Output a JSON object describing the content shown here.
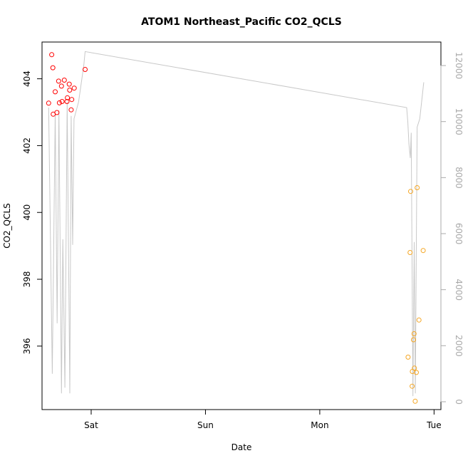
{
  "chart_data": {
    "type": "scatter",
    "title": "ATOM1 Northeast_Pacific CO2_QCLS",
    "xlabel": "Date",
    "ylabel": "CO2_QCLS",
    "x_ticks": [
      {
        "label": "Sat",
        "day": 1.0
      },
      {
        "label": "Sun",
        "day": 2.0
      },
      {
        "label": "Mon",
        "day": 3.0
      },
      {
        "label": "Tue",
        "day": 4.0
      }
    ],
    "xlim": [
      0.57,
      4.06
    ],
    "ylim": [
      394.1,
      405.1
    ],
    "y_ticks": [
      396,
      398,
      400,
      402,
      404
    ],
    "y2lim": [
      -280,
      12840
    ],
    "y2_ticks": [
      0,
      2000,
      4000,
      6000,
      8000,
      10000,
      12000
    ],
    "series": [
      {
        "color": "#ff0000",
        "points": [
          {
            "x": 0.628,
            "y": 403.27
          },
          {
            "x": 0.655,
            "y": 404.72
          },
          {
            "x": 0.665,
            "y": 404.33
          },
          {
            "x": 0.668,
            "y": 402.94
          },
          {
            "x": 0.685,
            "y": 403.61
          },
          {
            "x": 0.7,
            "y": 402.99
          },
          {
            "x": 0.715,
            "y": 403.93
          },
          {
            "x": 0.722,
            "y": 403.28
          },
          {
            "x": 0.74,
            "y": 403.78
          },
          {
            "x": 0.745,
            "y": 403.32
          },
          {
            "x": 0.765,
            "y": 403.96
          },
          {
            "x": 0.788,
            "y": 403.32
          },
          {
            "x": 0.792,
            "y": 403.43
          },
          {
            "x": 0.808,
            "y": 403.84
          },
          {
            "x": 0.812,
            "y": 403.66
          },
          {
            "x": 0.825,
            "y": 403.07
          },
          {
            "x": 0.83,
            "y": 403.38
          },
          {
            "x": 0.852,
            "y": 403.72
          },
          {
            "x": 0.947,
            "y": 404.28
          }
        ]
      },
      {
        "color": "#f5a623",
        "points": [
          {
            "x": 3.773,
            "y": 395.67
          },
          {
            "x": 3.79,
            "y": 398.8
          },
          {
            "x": 3.795,
            "y": 400.63
          },
          {
            "x": 3.808,
            "y": 394.8
          },
          {
            "x": 3.81,
            "y": 395.24
          },
          {
            "x": 3.82,
            "y": 396.19
          },
          {
            "x": 3.825,
            "y": 396.37
          },
          {
            "x": 3.828,
            "y": 395.34
          },
          {
            "x": 3.835,
            "y": 394.35
          },
          {
            "x": 3.845,
            "y": 395.21
          },
          {
            "x": 3.852,
            "y": 400.74
          },
          {
            "x": 3.868,
            "y": 396.78
          },
          {
            "x": 3.905,
            "y": 398.86
          }
        ]
      }
    ],
    "line_series": {
      "axis": "right",
      "color": "#c8c8c8",
      "points": [
        {
          "x": 0.628,
          "y": 10500
        },
        {
          "x": 0.66,
          "y": 1000
        },
        {
          "x": 0.685,
          "y": 10300
        },
        {
          "x": 0.702,
          "y": 2800
        },
        {
          "x": 0.718,
          "y": 10400
        },
        {
          "x": 0.74,
          "y": 300
        },
        {
          "x": 0.752,
          "y": 5800
        },
        {
          "x": 0.77,
          "y": 500
        },
        {
          "x": 0.79,
          "y": 10700
        },
        {
          "x": 0.813,
          "y": 300
        },
        {
          "x": 0.825,
          "y": 10200
        },
        {
          "x": 0.838,
          "y": 5600
        },
        {
          "x": 0.85,
          "y": 10100
        },
        {
          "x": 0.89,
          "y": 10700
        },
        {
          "x": 0.935,
          "y": 12000
        },
        {
          "x": 0.947,
          "y": 12500
        },
        {
          "x": 3.76,
          "y": 10500
        },
        {
          "x": 3.77,
          "y": 10000
        },
        {
          "x": 3.78,
          "y": 9200
        },
        {
          "x": 3.792,
          "y": 8700
        },
        {
          "x": 3.8,
          "y": 9600
        },
        {
          "x": 3.815,
          "y": 200
        },
        {
          "x": 3.826,
          "y": 5700
        },
        {
          "x": 3.836,
          "y": 300
        },
        {
          "x": 3.852,
          "y": 9800
        },
        {
          "x": 3.875,
          "y": 10100
        },
        {
          "x": 3.91,
          "y": 11400
        }
      ]
    }
  }
}
